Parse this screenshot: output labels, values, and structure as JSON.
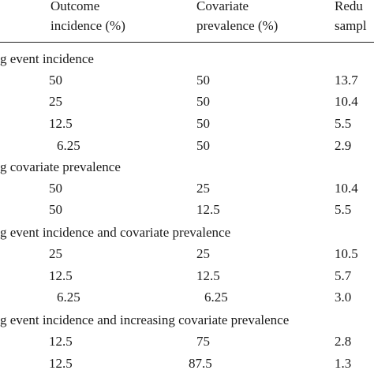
{
  "header": {
    "col1_line1": "Outcome",
    "col1_line2": "incidence (%)",
    "col2_line1": "Covariate",
    "col2_line2": "prevalence (%)",
    "col3_line1": "Redu",
    "col3_line2": "sampl"
  },
  "sections": [
    {
      "title": "g event incidence",
      "rows": [
        {
          "outcome": "50",
          "covariate": "50",
          "reduction": "13.7"
        },
        {
          "outcome": "25",
          "covariate": "50",
          "reduction": "10.4"
        },
        {
          "outcome": "12.5",
          "covariate": "50",
          "reduction": "5.5"
        },
        {
          "outcome": "6.25",
          "covariate": "50",
          "reduction": "2.9"
        }
      ]
    },
    {
      "title": "g covariate prevalence",
      "rows": [
        {
          "outcome": "50",
          "covariate": "25",
          "reduction": "10.4"
        },
        {
          "outcome": "50",
          "covariate": "12.5",
          "reduction": "5.5"
        }
      ]
    },
    {
      "title": "g event incidence and covariate prevalence",
      "rows": [
        {
          "outcome": "25",
          "covariate": "25",
          "reduction": "10.5"
        },
        {
          "outcome": "12.5",
          "covariate": "12.5",
          "reduction": "5.7"
        },
        {
          "outcome": "6.25",
          "covariate": "6.25",
          "reduction": "3.0"
        }
      ]
    },
    {
      "title": "g event incidence and increasing covariate prevalence",
      "rows": [
        {
          "outcome": "12.5",
          "covariate": "75",
          "reduction": "2.8"
        },
        {
          "outcome": "12.5",
          "covariate": "87.5",
          "reduction": "1.3"
        }
      ]
    }
  ]
}
